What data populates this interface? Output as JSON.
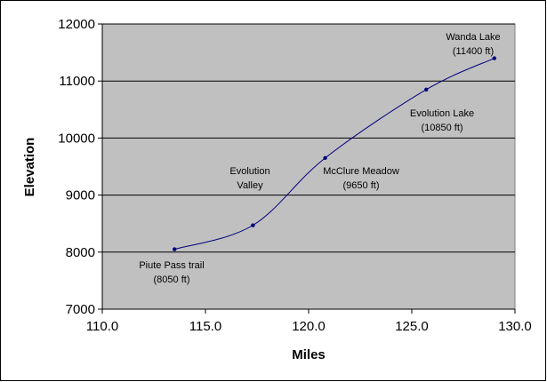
{
  "chart_data": {
    "type": "line",
    "title": "",
    "xlabel": "Miles",
    "ylabel": "Elevation",
    "xlim": [
      110,
      130
    ],
    "ylim": [
      7000,
      12000
    ],
    "xticks": [
      110,
      115,
      120,
      125,
      130
    ],
    "xtick_labels": [
      "110.0",
      "115.0",
      "120.0",
      "125.0",
      "130.0"
    ],
    "yticks": [
      7000,
      8000,
      9000,
      10000,
      11000,
      12000
    ],
    "ytick_labels": [
      "7000",
      "8000",
      "9000",
      "10000",
      "11000",
      "12000"
    ],
    "grid": "horizontal",
    "legend": "none",
    "plot_background": "#c0c0c0",
    "line_color": "#000080",
    "series": [
      {
        "x": [
          113.5,
          117.3,
          120.8,
          125.7,
          129.0
        ],
        "y": [
          8050,
          8470,
          9650,
          10850,
          11400
        ]
      }
    ],
    "annotations": [
      {
        "lines": [
          "Piute Pass trail",
          "(8050 ft)"
        ]
      },
      {
        "lines": [
          "Evolution",
          "Valley"
        ]
      },
      {
        "lines": [
          "McClure Meadow",
          "(9650 ft)"
        ]
      },
      {
        "lines": [
          "Evolution Lake",
          "(10850 ft)"
        ]
      },
      {
        "lines": [
          "Wanda Lake",
          "(11400 ft)"
        ]
      }
    ]
  }
}
